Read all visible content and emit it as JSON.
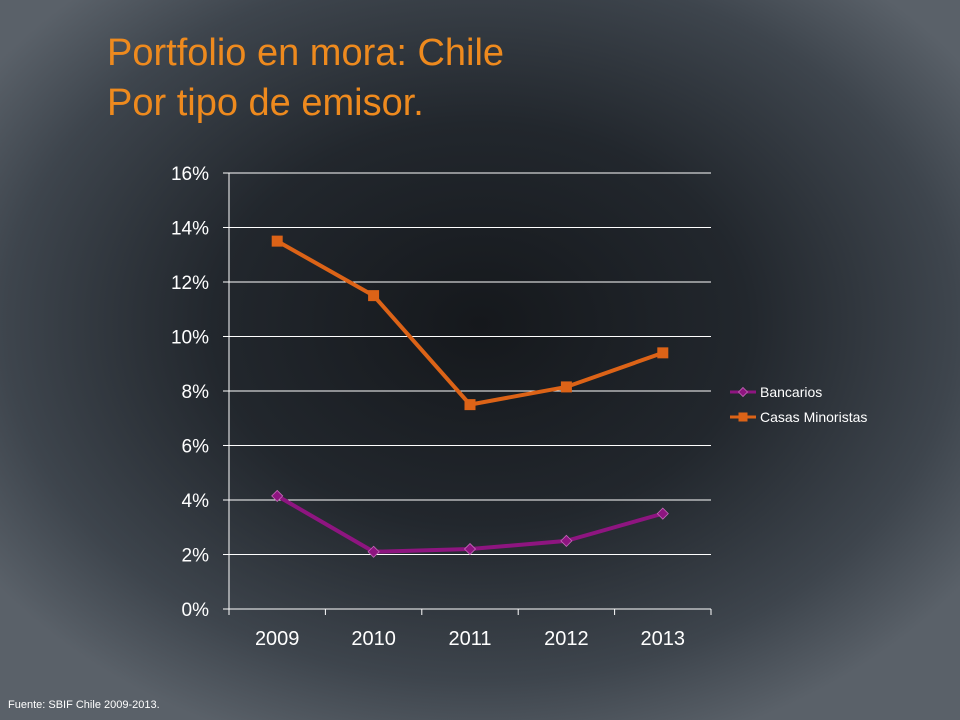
{
  "slide": {
    "title_line1": "Portfolio en mora: Chile",
    "title_line2": "Por tipo de emisor.",
    "footer": "Fuente:  SBIF Chile 2009-2013."
  },
  "chart_data": {
    "type": "line",
    "title": "",
    "xlabel": "",
    "ylabel": "",
    "categories": [
      "2009",
      "2010",
      "2011",
      "2012",
      "2013"
    ],
    "ylim": [
      0,
      16
    ],
    "y_ticks": [
      0,
      2,
      4,
      6,
      8,
      10,
      12,
      14,
      16
    ],
    "y_tick_labels": [
      "0%",
      "2%",
      "4%",
      "6%",
      "8%",
      "10%",
      "12%",
      "14%",
      "16%"
    ],
    "grid": true,
    "legend_position": "right",
    "series": [
      {
        "name": "Bancarios",
        "values": [
          4.15,
          2.1,
          2.2,
          2.5,
          3.5
        ],
        "color": "#8e1580",
        "marker": "diamond"
      },
      {
        "name": "Casas Minoristas",
        "values": [
          13.5,
          11.5,
          7.5,
          8.15,
          9.4
        ],
        "color": "#dc6317",
        "marker": "square"
      }
    ]
  }
}
